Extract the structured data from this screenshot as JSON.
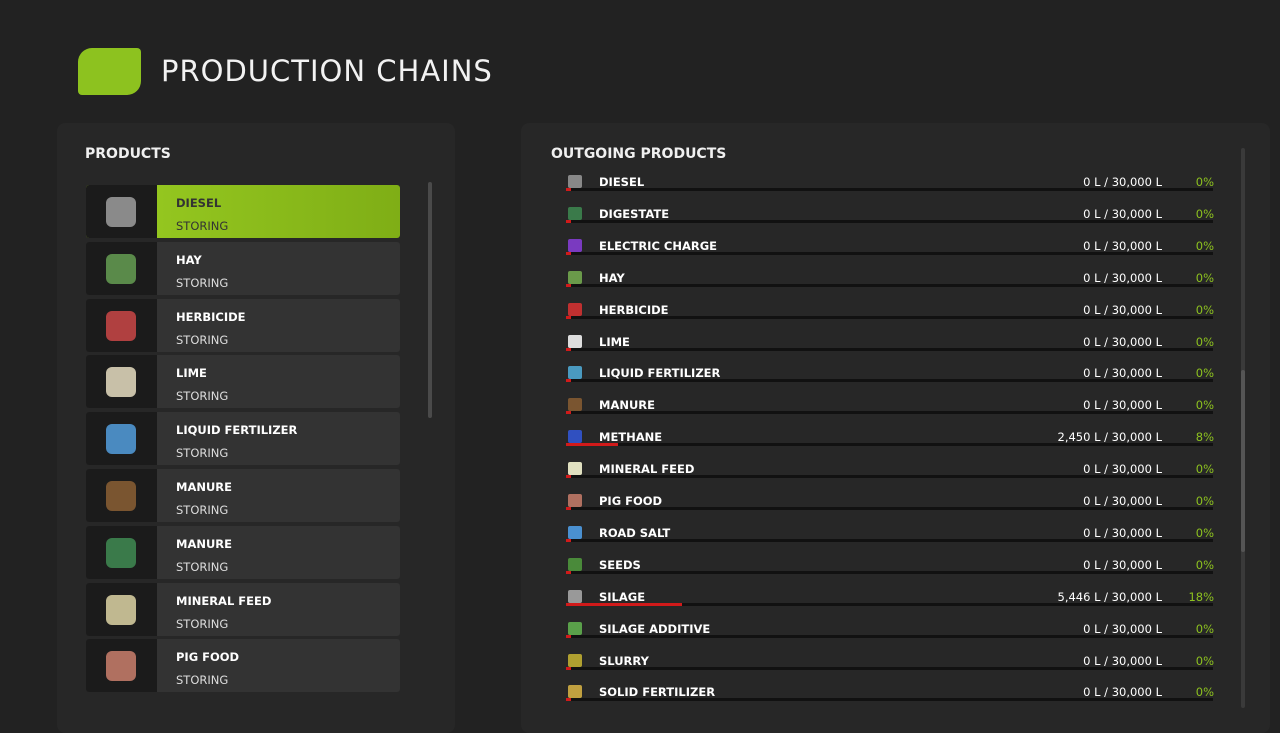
{
  "header": {
    "title": "PRODUCTION CHAINS"
  },
  "products": {
    "title": "PRODUCTS",
    "items": [
      {
        "name": "DIESEL",
        "status": "STORING"
      },
      {
        "name": "HAY",
        "status": "STORING"
      },
      {
        "name": "HERBICIDE",
        "status": "STORING"
      },
      {
        "name": "LIME",
        "status": "STORING"
      },
      {
        "name": "LIQUID FERTILIZER",
        "status": "STORING"
      },
      {
        "name": "MANURE",
        "status": "STORING"
      },
      {
        "name": "MANURE",
        "status": "STORING"
      },
      {
        "name": "MINERAL FEED",
        "status": "STORING"
      },
      {
        "name": "PIG FOOD",
        "status": "STORING"
      }
    ]
  },
  "outgoing": {
    "title": "OUTGOING PRODUCTS",
    "rows": [
      {
        "name": "DIESEL",
        "level": "0 L / 30,000 L",
        "percent": 0,
        "percent_label": "0%"
      },
      {
        "name": "DIGESTATE",
        "level": "0 L / 30,000 L",
        "percent": 0,
        "percent_label": "0%"
      },
      {
        "name": "ELECTRIC CHARGE",
        "level": "0 L / 30,000 L",
        "percent": 0,
        "percent_label": "0%"
      },
      {
        "name": "HAY",
        "level": "0 L / 30,000 L",
        "percent": 0,
        "percent_label": "0%"
      },
      {
        "name": "HERBICIDE",
        "level": "0 L / 30,000 L",
        "percent": 0,
        "percent_label": "0%"
      },
      {
        "name": "LIME",
        "level": "0 L / 30,000 L",
        "percent": 0,
        "percent_label": "0%"
      },
      {
        "name": "LIQUID FERTILIZER",
        "level": "0 L / 30,000 L",
        "percent": 0,
        "percent_label": "0%"
      },
      {
        "name": "MANURE",
        "level": "0 L / 30,000 L",
        "percent": 0,
        "percent_label": "0%"
      },
      {
        "name": "METHANE",
        "level": "2,450 L / 30,000 L",
        "percent": 8,
        "percent_label": "8%"
      },
      {
        "name": "MINERAL FEED",
        "level": "0 L / 30,000 L",
        "percent": 0,
        "percent_label": "0%"
      },
      {
        "name": "PIG FOOD",
        "level": "0 L / 30,000 L",
        "percent": 0,
        "percent_label": "0%"
      },
      {
        "name": "ROAD SALT",
        "level": "0 L / 30,000 L",
        "percent": 0,
        "percent_label": "0%"
      },
      {
        "name": "SEEDS",
        "level": "0 L / 30,000 L",
        "percent": 0,
        "percent_label": "0%"
      },
      {
        "name": "SILAGE",
        "level": "5,446 L / 30,000 L",
        "percent": 18,
        "percent_label": "18%"
      },
      {
        "name": "SILAGE ADDITIVE",
        "level": "0 L / 30,000 L",
        "percent": 0,
        "percent_label": "0%"
      },
      {
        "name": "SLURRY",
        "level": "0 L / 30,000 L",
        "percent": 0,
        "percent_label": "0%"
      },
      {
        "name": "SOLID FERTILIZER",
        "level": "0 L / 30,000 L",
        "percent": 0,
        "percent_label": "0%"
      }
    ]
  }
}
